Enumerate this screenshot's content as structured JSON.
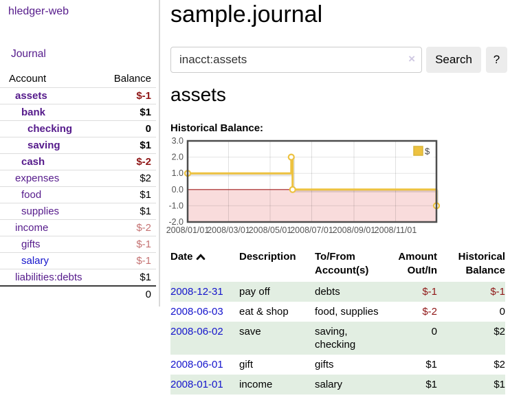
{
  "sidebar": {
    "brand": "hledger-web",
    "nav_journal": "Journal",
    "accounts_table": {
      "headers": [
        "Account",
        "Balance"
      ],
      "rows": [
        {
          "name": "assets",
          "indent": 1,
          "bold": true,
          "link": "purple",
          "balance": "$-1",
          "balance_class": "neg-strong"
        },
        {
          "name": "bank",
          "indent": 2,
          "bold": true,
          "link": "purple",
          "balance": "$1",
          "balance_class": ""
        },
        {
          "name": "checking",
          "indent": 3,
          "bold": true,
          "link": "purple",
          "balance": "0",
          "balance_class": ""
        },
        {
          "name": "saving",
          "indent": 3,
          "bold": true,
          "link": "purple",
          "balance": "$1",
          "balance_class": ""
        },
        {
          "name": "cash",
          "indent": 2,
          "bold": true,
          "link": "purple",
          "balance": "$-2",
          "balance_class": "neg-strong"
        },
        {
          "name": "expenses",
          "indent": 1,
          "bold": false,
          "link": "purple",
          "balance": "$2",
          "balance_class": ""
        },
        {
          "name": "food",
          "indent": 2,
          "bold": false,
          "link": "purple",
          "balance": "$1",
          "balance_class": ""
        },
        {
          "name": "supplies",
          "indent": 2,
          "bold": false,
          "link": "purple",
          "balance": "$1",
          "balance_class": ""
        },
        {
          "name": "income",
          "indent": 1,
          "bold": false,
          "link": "purple",
          "balance": "$-2",
          "balance_class": "neg-muted"
        },
        {
          "name": "gifts",
          "indent": 2,
          "bold": false,
          "link": "purple",
          "balance": "$-1",
          "balance_class": "neg-muted"
        },
        {
          "name": "salary",
          "indent": 2,
          "bold": false,
          "link": "blue",
          "balance": "$-1",
          "balance_class": "neg-muted"
        },
        {
          "name": "liabilities:debts",
          "indent": 1,
          "bold": false,
          "link": "purple",
          "balance": "$1",
          "balance_class": ""
        }
      ],
      "total": "0"
    }
  },
  "main": {
    "title": "sample.journal",
    "search": {
      "value": "inacct:assets",
      "clear_icon": "×",
      "button_label": "Search",
      "help_label": "?"
    },
    "account_heading": "assets",
    "register_table": {
      "headers": {
        "date": "Date",
        "description": "Description",
        "accounts": "To/From Account(s)",
        "amount": "Amount Out/In",
        "balance": "Historical Balance"
      },
      "sort": "date-ascending",
      "rows": [
        {
          "date": "2008-12-31",
          "description": "pay off",
          "accounts": "debts",
          "amount": "$-1",
          "amount_neg": true,
          "balance": "$-1",
          "balance_neg": true
        },
        {
          "date": "2008-06-03",
          "description": "eat & shop",
          "accounts": "food, supplies",
          "amount": "$-2",
          "amount_neg": true,
          "balance": "0",
          "balance_neg": false
        },
        {
          "date": "2008-06-02",
          "description": "save",
          "accounts": "saving, checking",
          "amount": "0",
          "amount_neg": false,
          "balance": "$2",
          "balance_neg": false
        },
        {
          "date": "2008-06-01",
          "description": "gift",
          "accounts": "gifts",
          "amount": "$1",
          "amount_neg": false,
          "balance": "$2",
          "balance_neg": false
        },
        {
          "date": "2008-01-01",
          "description": "income",
          "accounts": "salary",
          "amount": "$1",
          "amount_neg": false,
          "balance": "$1",
          "balance_neg": false
        }
      ]
    }
  },
  "chart_data": {
    "type": "line",
    "step": true,
    "title": "Historical Balance:",
    "legend": {
      "label": "$",
      "position": "top-right"
    },
    "series": [
      {
        "name": "$",
        "color": "#edc240",
        "points": [
          {
            "date": "2008/01/01",
            "day": 0,
            "value": 1.0
          },
          {
            "date": "2008/06/01",
            "day": 152,
            "value": 2.0
          },
          {
            "date": "2008/06/03",
            "day": 154,
            "value": 0.0
          },
          {
            "date": "2008/12/31",
            "day": 365,
            "value": -1.0
          }
        ]
      }
    ],
    "x_range_days": [
      0,
      365
    ],
    "ylim": [
      -2.0,
      3.0
    ],
    "x_ticks": [
      {
        "day": 0,
        "label": "2008/01/01"
      },
      {
        "day": 60,
        "label": "2008/03/01"
      },
      {
        "day": 121,
        "label": "2008/05/01"
      },
      {
        "day": 182,
        "label": "2008/07/01"
      },
      {
        "day": 244,
        "label": "2008/09/01"
      },
      {
        "day": 305,
        "label": "2008/11/01"
      }
    ],
    "y_ticks": [
      {
        "v": 3,
        "label": "3.0"
      },
      {
        "v": 2,
        "label": "2.0"
      },
      {
        "v": 1,
        "label": "1.0"
      },
      {
        "v": 0,
        "label": "0.0"
      },
      {
        "v": -1,
        "label": "-1.0"
      },
      {
        "v": -2,
        "label": "-2.0"
      }
    ],
    "grid": true,
    "negative_fill": "#f9dcdc",
    "zero_line_color": "#a62121",
    "frame_color": "#4d4d4d"
  },
  "colors": {
    "link_purple": "#551a8b",
    "link_blue": "#1414cc",
    "negative_strong": "#8f1717",
    "negative_muted": "#c57373",
    "row_green": "#e2eee2",
    "chart_gold": "#edc240",
    "chart_negative_fill": "#f9dcdc",
    "chart_zero_line": "#a62121"
  }
}
